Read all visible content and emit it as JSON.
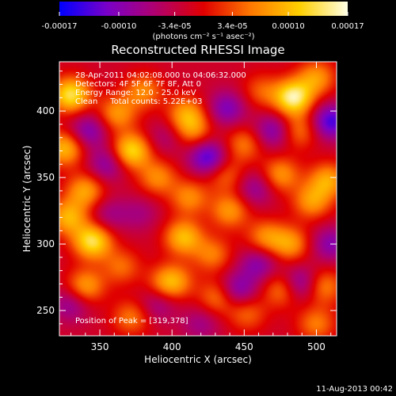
{
  "chart_data": {
    "type": "heatmap",
    "title": "Reconstructed RHESSI Image",
    "xlabel": "Heliocentric X (arcsec)",
    "ylabel": "Heliocentric Y (arcsec)",
    "xlim": [
      322,
      514
    ],
    "ylim": [
      231,
      437
    ],
    "x_ticks": [
      350,
      400,
      450,
      500
    ],
    "y_ticks": [
      250,
      300,
      350,
      400
    ],
    "colorbar": {
      "ticks": [
        "-0.00017",
        "-0.00010",
        "-3.4e-05",
        "3.4e-05",
        "0.00010",
        "0.00017"
      ],
      "tick_values": [
        -0.00017,
        -0.0001,
        -3.4e-05,
        3.4e-05,
        0.0001,
        0.00017
      ],
      "range": [
        -0.00017,
        0.00017
      ],
      "unit_label": "(photons cm⁻² s⁻¹ asec⁻²)",
      "colors": [
        "#0000ff",
        "#7a00c8",
        "#b0006e",
        "#e00000",
        "#ff7a00",
        "#ffd000",
        "#ffffe6"
      ]
    },
    "annotations": {
      "time_range": "28-Apr-2011 04:02:08.000 to 04:06:32.000",
      "detectors": "Detectors: 4F 5F 6F 7F 8F, Att 0",
      "energy_range": "Energy Range: 12.0 - 25.0 keV",
      "clean_counts": "Clean     Total counts: 5.22E+03",
      "peak_position": "Position of Peak = [319,378]"
    },
    "sources": [
      {
        "x": 330,
        "y": 412,
        "v": 0.9
      },
      {
        "x": 326,
        "y": 372,
        "v": 0.7
      },
      {
        "x": 340,
        "y": 340,
        "v": 0.6
      },
      {
        "x": 328,
        "y": 320,
        "v": 0.65
      },
      {
        "x": 345,
        "y": 302,
        "v": 0.9
      },
      {
        "x": 340,
        "y": 268,
        "v": 0.6
      },
      {
        "x": 372,
        "y": 370,
        "v": 0.85
      },
      {
        "x": 362,
        "y": 398,
        "v": 0.55
      },
      {
        "x": 380,
        "y": 415,
        "v": 0.5
      },
      {
        "x": 390,
        "y": 350,
        "v": 0.5
      },
      {
        "x": 372,
        "y": 245,
        "v": 0.45
      },
      {
        "x": 395,
        "y": 270,
        "v": 0.35
      },
      {
        "x": 410,
        "y": 398,
        "v": 0.55
      },
      {
        "x": 415,
        "y": 385,
        "v": 0.45
      },
      {
        "x": 408,
        "y": 305,
        "v": 0.7
      },
      {
        "x": 412,
        "y": 335,
        "v": 0.5
      },
      {
        "x": 402,
        "y": 272,
        "v": 0.45
      },
      {
        "x": 432,
        "y": 260,
        "v": 0.5
      },
      {
        "x": 428,
        "y": 292,
        "v": 0.45
      },
      {
        "x": 440,
        "y": 325,
        "v": 0.55
      },
      {
        "x": 437,
        "y": 352,
        "v": 0.4
      },
      {
        "x": 450,
        "y": 375,
        "v": 0.45
      },
      {
        "x": 462,
        "y": 415,
        "v": 0.35
      },
      {
        "x": 465,
        "y": 305,
        "v": 0.5
      },
      {
        "x": 475,
        "y": 352,
        "v": 0.55
      },
      {
        "x": 488,
        "y": 385,
        "v": 0.45
      },
      {
        "x": 484,
        "y": 410,
        "v": 1.0
      },
      {
        "x": 500,
        "y": 425,
        "v": 0.55
      },
      {
        "x": 497,
        "y": 332,
        "v": 0.55
      },
      {
        "x": 508,
        "y": 348,
        "v": 0.6
      },
      {
        "x": 482,
        "y": 300,
        "v": 0.55
      },
      {
        "x": 477,
        "y": 266,
        "v": 0.55
      },
      {
        "x": 505,
        "y": 268,
        "v": 0.5
      },
      {
        "x": 452,
        "y": 248,
        "v": 0.4
      },
      {
        "x": 500,
        "y": 240,
        "v": 0.45
      },
      {
        "x": 365,
        "y": 283,
        "v": 0.4
      },
      {
        "x": 378,
        "y": 323,
        "v": -0.25
      },
      {
        "x": 342,
        "y": 385,
        "v": -0.5
      },
      {
        "x": 355,
        "y": 360,
        "v": -0.45
      },
      {
        "x": 330,
        "y": 255,
        "v": -0.4
      },
      {
        "x": 356,
        "y": 322,
        "v": -0.3
      },
      {
        "x": 390,
        "y": 255,
        "v": -0.35
      },
      {
        "x": 425,
        "y": 365,
        "v": -0.7
      },
      {
        "x": 438,
        "y": 402,
        "v": -0.5
      },
      {
        "x": 445,
        "y": 265,
        "v": -0.55
      },
      {
        "x": 458,
        "y": 342,
        "v": -0.4
      },
      {
        "x": 460,
        "y": 285,
        "v": -0.45
      },
      {
        "x": 470,
        "y": 385,
        "v": -0.5
      },
      {
        "x": 488,
        "y": 270,
        "v": -0.6
      },
      {
        "x": 510,
        "y": 392,
        "v": -0.7
      },
      {
        "x": 510,
        "y": 300,
        "v": -0.45
      },
      {
        "x": 395,
        "y": 380,
        "v": -0.25
      },
      {
        "x": 420,
        "y": 240,
        "v": -0.3
      }
    ]
  },
  "timestamp": "11-Aug-2013 00:42"
}
